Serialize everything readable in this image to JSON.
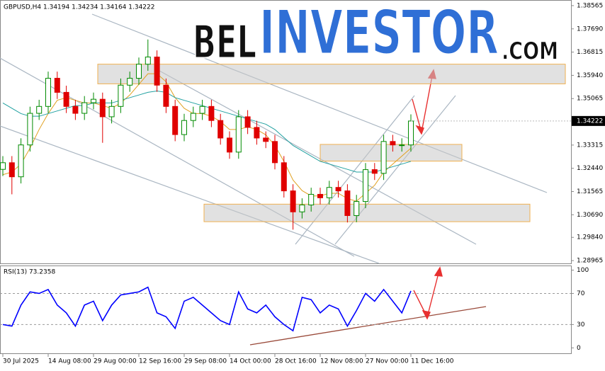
{
  "chart_data": [
    {
      "type": "candlestick",
      "title": "GBPUSD,H4 1.34194 1.34234 1.34164 1.34222",
      "watermark": [
        "BEL",
        "INVESTOR",
        ".COM"
      ],
      "categories": [
        "30 Jul 2025",
        null,
        null,
        null,
        null,
        "14 Aug 08:00",
        null,
        null,
        null,
        null,
        "29 Aug 00:00",
        null,
        null,
        null,
        null,
        "12 Sep 16:00",
        null,
        null,
        null,
        null,
        "29 Sep 08:00",
        null,
        null,
        null,
        null,
        "14 Oct 00:00",
        null,
        null,
        null,
        null,
        "28 Oct 16:00",
        null,
        null,
        null,
        null,
        "12 Nov 08:00",
        null,
        null,
        null,
        null,
        "27 Nov 00:00",
        null,
        null,
        null,
        null,
        "11 Dec 16:00"
      ],
      "open": [
        1.324,
        1.3265,
        1.3212,
        1.3332,
        1.3451,
        1.3477,
        1.3583,
        1.353,
        1.3477,
        1.3451,
        1.3491,
        1.3504,
        1.3438,
        1.3477,
        1.3557,
        1.3583,
        1.3636,
        1.3663,
        1.3557,
        1.3477,
        1.3371,
        1.3424,
        1.3451,
        1.3477,
        1.3424,
        1.3358,
        1.3305,
        1.3438,
        1.3398,
        1.3358,
        1.3345,
        1.3265,
        1.3159,
        1.308,
        1.3106,
        1.3146,
        1.3133,
        1.3172,
        1.3159,
        1.3066,
        1.3119,
        1.3239,
        1.3225,
        1.3345,
        1.3332,
        1.3332
      ],
      "high": [
        1.329,
        1.329,
        1.3357,
        1.3476,
        1.3502,
        1.3608,
        1.3608,
        1.3555,
        1.3502,
        1.3516,
        1.3529,
        1.3529,
        1.3502,
        1.3582,
        1.3608,
        1.3661,
        1.3729,
        1.3688,
        1.3582,
        1.3502,
        1.3449,
        1.3476,
        1.3502,
        1.3502,
        1.3449,
        1.3383,
        1.3463,
        1.3463,
        1.3423,
        1.3383,
        1.337,
        1.329,
        1.3184,
        1.3131,
        1.3171,
        1.3171,
        1.3197,
        1.3197,
        1.3184,
        1.3144,
        1.3264,
        1.3264,
        1.337,
        1.337,
        1.3357,
        1.3447
      ],
      "low": [
        1.3215,
        1.3146,
        1.3187,
        1.3307,
        1.3426,
        1.3452,
        1.3505,
        1.3452,
        1.3426,
        1.3426,
        1.3466,
        1.334,
        1.3413,
        1.3452,
        1.3532,
        1.3558,
        1.3611,
        1.3532,
        1.3452,
        1.3346,
        1.3346,
        1.3399,
        1.3426,
        1.3399,
        1.3333,
        1.328,
        1.328,
        1.3373,
        1.3333,
        1.332,
        1.324,
        1.3134,
        1.3013,
        1.3055,
        1.3081,
        1.3108,
        1.3108,
        1.3134,
        1.304,
        1.3041,
        1.3094,
        1.32,
        1.32,
        1.3307,
        1.3307,
        1.3307
      ],
      "close": [
        1.3265,
        1.3212,
        1.3332,
        1.3451,
        1.3477,
        1.3583,
        1.353,
        1.3477,
        1.3451,
        1.3491,
        1.3504,
        1.3438,
        1.3477,
        1.3557,
        1.3583,
        1.3636,
        1.3663,
        1.3557,
        1.3477,
        1.3371,
        1.3424,
        1.3451,
        1.3477,
        1.3424,
        1.3358,
        1.3305,
        1.3438,
        1.3398,
        1.3358,
        1.3345,
        1.3265,
        1.3159,
        1.308,
        1.3106,
        1.3146,
        1.3133,
        1.3172,
        1.3159,
        1.3066,
        1.3119,
        1.3239,
        1.3225,
        1.3345,
        1.3332,
        1.3332,
        1.3422
      ],
      "up_color": "#008a00",
      "down_color": "#e00000",
      "lines": [
        {
          "color": "#e0a020",
          "values": [
            1.322,
            1.323,
            1.326,
            1.332,
            1.339,
            1.345,
            1.35,
            1.351,
            1.35,
            1.349,
            1.349,
            1.348,
            1.347,
            1.349,
            1.352,
            1.356,
            1.36,
            1.36,
            1.357,
            1.351,
            1.347,
            1.345,
            1.345,
            1.344,
            1.342,
            1.339,
            1.339,
            1.34,
            1.339,
            1.337,
            1.333,
            1.327,
            1.32,
            1.316,
            1.314,
            1.314,
            1.315,
            1.315,
            1.313,
            1.312,
            1.315,
            1.318,
            1.323,
            1.326,
            1.329,
            1.332
          ]
        },
        {
          "color": "#20a0a0",
          "values": [
            1.349,
            1.347,
            1.345,
            1.344,
            1.344,
            1.345,
            1.346,
            1.347,
            1.348,
            1.348,
            1.349,
            1.349,
            1.349,
            1.35,
            1.351,
            1.352,
            1.353,
            1.3535,
            1.353,
            1.351,
            1.35,
            1.349,
            1.348,
            1.347,
            1.346,
            1.345,
            1.344,
            1.343,
            1.342,
            1.341,
            1.339,
            1.336,
            1.333,
            1.331,
            1.329,
            1.327,
            1.326,
            1.325,
            1.324,
            1.323,
            1.323,
            1.323,
            1.324,
            1.325,
            1.326,
            1.327
          ]
        }
      ],
      "zones": [
        [
          1.3562,
          1.3636
        ],
        [
          1.3271,
          1.3334
        ],
        [
          1.3043,
          1.3109
        ]
      ],
      "ylim": [
        1.2886,
        1.3875
      ],
      "yticks": [
        1.38565,
        {
          "value": 1.3769,
          "label": "1.37690"
        },
        1.36815,
        {
          "value": 1.3594,
          "label": "1.35940"
        },
        1.35065,
        1.33315,
        {
          "value": 1.3244,
          "label": "1.32440"
        },
        1.31565,
        {
          "value": 1.3069,
          "label": "1.30690"
        },
        {
          "value": 1.2984,
          "label": "1.29840"
        },
        1.28965
      ],
      "current_price": 1.34222
    },
    {
      "type": "line",
      "title": "RSI(13) 73.2358",
      "color": "#0000ff",
      "values": [
        30,
        28,
        55,
        72,
        70,
        75,
        55,
        45,
        28,
        55,
        60,
        35,
        55,
        68,
        70,
        72,
        78,
        45,
        40,
        25,
        60,
        65,
        55,
        45,
        35,
        30,
        72,
        50,
        45,
        55,
        40,
        30,
        22,
        65,
        62,
        45,
        55,
        50,
        28,
        48,
        70,
        60,
        75,
        60,
        45,
        73.2358
      ],
      "ylim": [
        -7,
        105
      ],
      "yticks": [
        0,
        30,
        70,
        100
      ]
    }
  ]
}
